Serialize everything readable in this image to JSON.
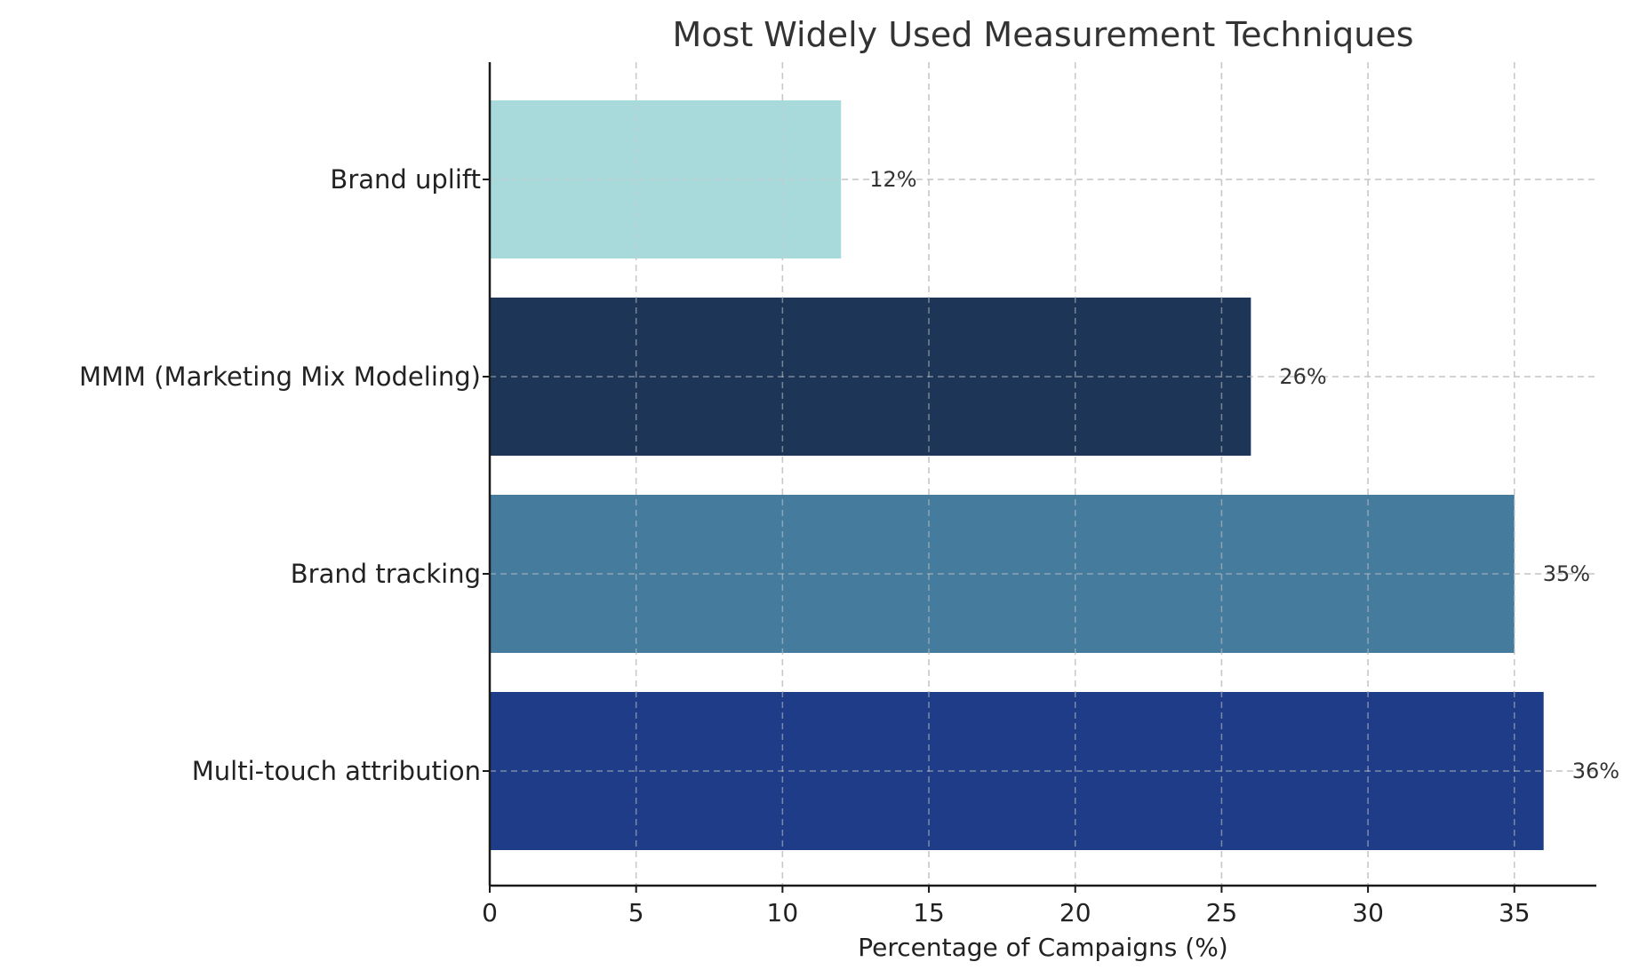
{
  "chart_data": {
    "type": "bar",
    "orientation": "horizontal",
    "title": "Most Widely Used Measurement Techniques",
    "xlabel": "Percentage of Campaigns (%)",
    "ylabel": "",
    "categories": [
      "Multi-touch attribution",
      "Brand tracking",
      "MMM (Marketing Mix Modeling)",
      "Brand uplift"
    ],
    "values": [
      36,
      35,
      26,
      12
    ],
    "value_labels": [
      "36%",
      "35%",
      "26%",
      "12%"
    ],
    "colors": [
      "#1f3c88",
      "#457b9d",
      "#1d3557",
      "#a8dadc"
    ],
    "xlim": [
      0,
      37.8
    ],
    "xticks": [
      0,
      5,
      10,
      15,
      20,
      25,
      30,
      35
    ],
    "grid": true,
    "legend": "none"
  }
}
